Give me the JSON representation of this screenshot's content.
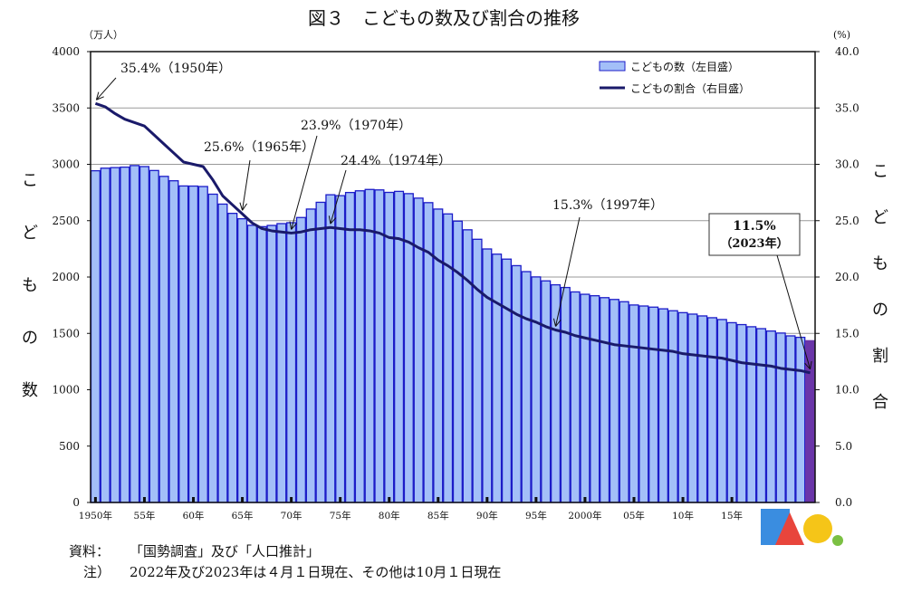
{
  "title": "図３　こどもの数及び割合の推移",
  "chart_data": {
    "type": "bar+line",
    "title": "図３　こどもの数及び割合の推移",
    "left_axis": {
      "label": "こどもの数",
      "unit": "（万人）",
      "range": [
        0,
        4000
      ],
      "ticks": [
        "0",
        "500",
        "1000",
        "1500",
        "2000",
        "2500",
        "3000",
        "3500",
        "4000"
      ]
    },
    "right_axis": {
      "label": "こどもの割合",
      "unit": "(%)",
      "range": [
        0,
        40
      ],
      "ticks": [
        "0.0",
        "5.0",
        "10.0",
        "15.0",
        "20.0",
        "25.0",
        "30.0",
        "35.0",
        "40.0"
      ]
    },
    "x_tick_labels": [
      {
        "year": 1950,
        "label": "1950年"
      },
      {
        "year": 1955,
        "label": "55年"
      },
      {
        "year": 1960,
        "label": "60年"
      },
      {
        "year": 1965,
        "label": "65年"
      },
      {
        "year": 1970,
        "label": "70年"
      },
      {
        "year": 1975,
        "label": "75年"
      },
      {
        "year": 1980,
        "label": "80年"
      },
      {
        "year": 1985,
        "label": "85年"
      },
      {
        "year": 1990,
        "label": "90年"
      },
      {
        "year": 1995,
        "label": "95年"
      },
      {
        "year": 2000,
        "label": "2000年"
      },
      {
        "year": 2005,
        "label": "05年"
      },
      {
        "year": 2010,
        "label": "10年"
      },
      {
        "year": 2015,
        "label": "15年"
      }
    ],
    "years": [
      1950,
      1951,
      1952,
      1953,
      1954,
      1955,
      1956,
      1957,
      1958,
      1959,
      1960,
      1961,
      1962,
      1963,
      1964,
      1965,
      1966,
      1967,
      1968,
      1969,
      1970,
      1971,
      1972,
      1973,
      1974,
      1975,
      1976,
      1977,
      1978,
      1979,
      1980,
      1981,
      1982,
      1983,
      1984,
      1985,
      1986,
      1987,
      1988,
      1989,
      1990,
      1991,
      1992,
      1993,
      1994,
      1995,
      1996,
      1997,
      1998,
      1999,
      2000,
      2001,
      2002,
      2003,
      2004,
      2005,
      2006,
      2007,
      2008,
      2009,
      2010,
      2011,
      2012,
      2013,
      2014,
      2015,
      2016,
      2017,
      2018,
      2019,
      2020,
      2021,
      2022,
      2023
    ],
    "series": [
      {
        "name": "こどもの数（左目盛）",
        "type": "bar",
        "axis": "left",
        "values": [
          2943,
          2966,
          2971,
          2975,
          2989,
          2980,
          2945,
          2893,
          2854,
          2808,
          2807,
          2803,
          2735,
          2647,
          2565,
          2517,
          2459,
          2447,
          2458,
          2474,
          2482,
          2528,
          2603,
          2663,
          2730,
          2722,
          2750,
          2765,
          2777,
          2773,
          2751,
          2760,
          2740,
          2700,
          2660,
          2603,
          2560,
          2496,
          2419,
          2335,
          2249,
          2203,
          2159,
          2101,
          2048,
          2001,
          1966,
          1931,
          1907,
          1868,
          1847,
          1834,
          1817,
          1801,
          1781,
          1752,
          1743,
          1733,
          1718,
          1701,
          1684,
          1671,
          1655,
          1639,
          1623,
          1595,
          1578,
          1559,
          1542,
          1521,
          1503,
          1478,
          1465,
          1435
        ]
      },
      {
        "name": "こどもの割合（右目盛）",
        "type": "line",
        "axis": "right",
        "values": [
          35.4,
          35.1,
          34.5,
          34.0,
          33.7,
          33.4,
          32.6,
          31.8,
          31.0,
          30.2,
          30.0,
          29.8,
          28.6,
          27.2,
          26.4,
          25.6,
          24.8,
          24.3,
          24.1,
          24.0,
          23.9,
          24.0,
          24.2,
          24.3,
          24.4,
          24.3,
          24.2,
          24.2,
          24.1,
          23.9,
          23.5,
          23.4,
          23.1,
          22.6,
          22.2,
          21.5,
          21.0,
          20.4,
          19.7,
          18.9,
          18.2,
          17.7,
          17.2,
          16.7,
          16.3,
          16.0,
          15.6,
          15.3,
          15.1,
          14.8,
          14.6,
          14.4,
          14.2,
          14.0,
          13.9,
          13.8,
          13.7,
          13.6,
          13.5,
          13.4,
          13.2,
          13.1,
          13.0,
          12.9,
          12.8,
          12.6,
          12.4,
          12.3,
          12.2,
          12.1,
          11.9,
          11.8,
          11.7,
          11.5
        ]
      }
    ],
    "annotations": [
      {
        "year": 1950,
        "label": "35.4%（1950年）"
      },
      {
        "year": 1965,
        "label": "25.6%（1965年）"
      },
      {
        "year": 1970,
        "label": "23.9%（1970年）"
      },
      {
        "year": 1974,
        "label": "24.4%（1974年）"
      },
      {
        "year": 1997,
        "label": "15.3%（1997年）"
      },
      {
        "year": 2023,
        "label": "11.5%",
        "sublabel": "（2023年）",
        "boxed": true
      }
    ],
    "gridlines": [
      1500,
      2000,
      2500,
      3000,
      3500
    ],
    "legend": "top-right",
    "colors": {
      "bar": "#a3bff8",
      "bar_border": "#1c1cc8",
      "bar_highlight": "#6a35a8",
      "line": "#1a1a6a"
    }
  },
  "notes": {
    "source_label": "資料：",
    "source_text": "「国勢調査」及び「人口推計」",
    "note_label": "注）",
    "note_text": "2022年及び2023年は４月１日現在、その他は10月１日現在"
  }
}
